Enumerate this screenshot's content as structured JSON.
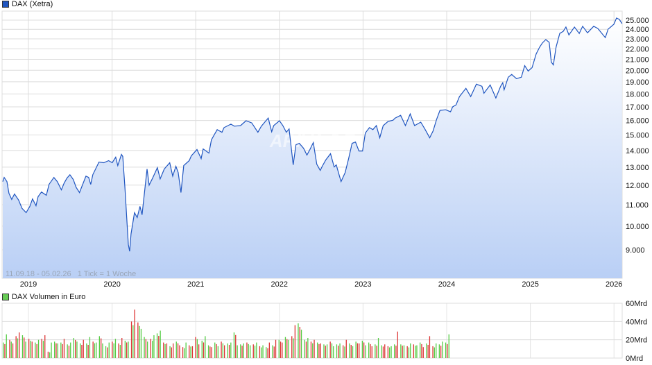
{
  "price_legend": "DAX (Xetra)",
  "volume_legend": "DAX Volumen in Euro",
  "range_note": "11.09.18 - 05.02.26   1 Tick = 1 Woche",
  "watermark": "ARIVA.DE",
  "colors": {
    "line": "#1f55c0",
    "fill_bottom": "#b9cff5",
    "price_legend": "#1f55c0",
    "volume_legend": "#66cc55",
    "vol_up": "#55cc44",
    "vol_down": "#dd3333"
  },
  "chart_data": [
    {
      "type": "area",
      "title": "DAX (Xetra)",
      "y_scale": "log",
      "ylim": [
        8500,
        26000
      ],
      "grid": true,
      "y_ticks": [
        "9.000",
        "10.000",
        "11.000",
        "12.000",
        "13.000",
        "14.000",
        "15.000",
        "16.000",
        "17.000",
        "18.000",
        "19.000",
        "20.000",
        "21.000",
        "22.000",
        "23.000",
        "24.000",
        "25.000"
      ],
      "y_tick_values": [
        9000,
        10000,
        11000,
        12000,
        13000,
        14000,
        15000,
        16000,
        17000,
        18000,
        19000,
        20000,
        21000,
        22000,
        23000,
        24000,
        25000
      ],
      "x_ticks": [
        "2019",
        "2020",
        "2021",
        "2022",
        "2023",
        "2024",
        "2025",
        "2026"
      ],
      "x_range": [
        "2018-09-11",
        "2026-02-05"
      ],
      "points": [
        [
          "2018-09-11",
          12190
        ],
        [
          "2018-09-17",
          12420
        ],
        [
          "2018-09-29",
          12190
        ],
        [
          "2018-10-08",
          11570
        ],
        [
          "2018-10-20",
          11260
        ],
        [
          "2018-11-01",
          11540
        ],
        [
          "2018-11-19",
          11230
        ],
        [
          "2018-12-04",
          10820
        ],
        [
          "2018-12-22",
          10620
        ],
        [
          "2019-01-07",
          10920
        ],
        [
          "2019-01-19",
          11290
        ],
        [
          "2019-02-03",
          10950
        ],
        [
          "2019-02-12",
          11400
        ],
        [
          "2019-02-27",
          11640
        ],
        [
          "2019-03-20",
          11470
        ],
        [
          "2019-04-01",
          12040
        ],
        [
          "2019-04-22",
          12420
        ],
        [
          "2019-05-07",
          12190
        ],
        [
          "2019-05-25",
          11750
        ],
        [
          "2019-06-06",
          12110
        ],
        [
          "2019-06-18",
          12380
        ],
        [
          "2019-07-01",
          12570
        ],
        [
          "2019-07-16",
          12300
        ],
        [
          "2019-07-28",
          11890
        ],
        [
          "2019-08-12",
          11610
        ],
        [
          "2019-09-09",
          12490
        ],
        [
          "2019-09-21",
          12420
        ],
        [
          "2019-09-30",
          12040
        ],
        [
          "2019-10-09",
          12570
        ],
        [
          "2019-11-05",
          13300
        ],
        [
          "2019-11-26",
          13260
        ],
        [
          "2019-12-17",
          13380
        ],
        [
          "2020-01-02",
          13260
        ],
        [
          "2020-01-17",
          13590
        ],
        [
          "2020-01-26",
          13090
        ],
        [
          "2020-02-11",
          13760
        ],
        [
          "2020-02-17",
          13630
        ],
        [
          "2020-02-26",
          11930
        ],
        [
          "2020-03-12",
          9220
        ],
        [
          "2020-03-18",
          8940
        ],
        [
          "2020-03-24",
          9660
        ],
        [
          "2020-04-08",
          10620
        ],
        [
          "2020-04-20",
          10390
        ],
        [
          "2020-05-02",
          10920
        ],
        [
          "2020-05-11",
          10520
        ],
        [
          "2020-06-02",
          12890
        ],
        [
          "2020-06-11",
          12000
        ],
        [
          "2020-06-26",
          12380
        ],
        [
          "2020-07-17",
          12970
        ],
        [
          "2020-07-29",
          12340
        ],
        [
          "2020-08-16",
          12890
        ],
        [
          "2020-09-09",
          13260
        ],
        [
          "2020-09-22",
          12490
        ],
        [
          "2020-10-06",
          13050
        ],
        [
          "2020-10-16",
          12690
        ],
        [
          "2020-10-28",
          11610
        ],
        [
          "2020-11-09",
          13090
        ],
        [
          "2020-12-03",
          13380
        ],
        [
          "2020-12-12",
          13670
        ],
        [
          "2021-01-06",
          14060
        ],
        [
          "2021-01-24",
          13500
        ],
        [
          "2021-02-02",
          14100
        ],
        [
          "2021-02-27",
          13840
        ],
        [
          "2021-03-10",
          14680
        ],
        [
          "2021-04-04",
          15360
        ],
        [
          "2021-04-25",
          15180
        ],
        [
          "2021-05-04",
          15500
        ],
        [
          "2021-06-03",
          15740
        ],
        [
          "2021-06-18",
          15600
        ],
        [
          "2021-07-15",
          15640
        ],
        [
          "2021-08-08",
          15980
        ],
        [
          "2021-09-02",
          15830
        ],
        [
          "2021-09-29",
          15180
        ],
        [
          "2021-10-14",
          15600
        ],
        [
          "2021-11-13",
          16170
        ],
        [
          "2021-11-28",
          15220
        ],
        [
          "2021-12-07",
          15640
        ],
        [
          "2022-01-01",
          15980
        ],
        [
          "2022-01-16",
          15640
        ],
        [
          "2022-01-31",
          15180
        ],
        [
          "2022-02-12",
          15410
        ],
        [
          "2022-03-02",
          13130
        ],
        [
          "2022-03-14",
          14360
        ],
        [
          "2022-03-29",
          14450
        ],
        [
          "2022-04-16",
          14140
        ],
        [
          "2022-05-01",
          13720
        ],
        [
          "2022-05-14",
          14060
        ],
        [
          "2022-05-29",
          14500
        ],
        [
          "2022-06-13",
          13170
        ],
        [
          "2022-06-28",
          12810
        ],
        [
          "2022-07-07",
          13050
        ],
        [
          "2022-07-22",
          13420
        ],
        [
          "2022-08-12",
          13800
        ],
        [
          "2022-08-28",
          13010
        ],
        [
          "2022-09-06",
          13130
        ],
        [
          "2022-09-27",
          12190
        ],
        [
          "2022-10-15",
          12690
        ],
        [
          "2022-10-30",
          13500
        ],
        [
          "2022-11-14",
          14450
        ],
        [
          "2022-11-29",
          14540
        ],
        [
          "2022-12-14",
          13970
        ],
        [
          "2022-12-30",
          13970
        ],
        [
          "2023-01-11",
          15130
        ],
        [
          "2023-01-29",
          15500
        ],
        [
          "2023-02-13",
          15360
        ],
        [
          "2023-02-28",
          15640
        ],
        [
          "2023-03-15",
          14810
        ],
        [
          "2023-03-30",
          15640
        ],
        [
          "2023-04-20",
          15930
        ],
        [
          "2023-05-12",
          16020
        ],
        [
          "2023-05-21",
          16170
        ],
        [
          "2023-06-14",
          16370
        ],
        [
          "2023-07-05",
          15640
        ],
        [
          "2023-07-26",
          16470
        ],
        [
          "2023-08-14",
          15640
        ],
        [
          "2023-09-10",
          15880
        ],
        [
          "2023-09-28",
          15410
        ],
        [
          "2023-10-19",
          14810
        ],
        [
          "2023-11-03",
          15270
        ],
        [
          "2023-11-18",
          16070
        ],
        [
          "2023-12-03",
          16730
        ],
        [
          "2023-12-28",
          16780
        ],
        [
          "2024-01-18",
          16630
        ],
        [
          "2024-01-27",
          16990
        ],
        [
          "2024-02-11",
          17150
        ],
        [
          "2024-02-26",
          17790
        ],
        [
          "2024-03-25",
          18460
        ],
        [
          "2024-04-15",
          17790
        ],
        [
          "2024-05-10",
          18800
        ],
        [
          "2024-06-03",
          18630
        ],
        [
          "2024-06-12",
          18060
        ],
        [
          "2024-07-09",
          18740
        ],
        [
          "2024-08-03",
          17680
        ],
        [
          "2024-08-24",
          18630
        ],
        [
          "2024-09-02",
          18920
        ],
        [
          "2024-09-08",
          18340
        ],
        [
          "2024-09-26",
          19390
        ],
        [
          "2024-10-11",
          19630
        ],
        [
          "2024-11-01",
          19270
        ],
        [
          "2024-11-22",
          19390
        ],
        [
          "2024-12-07",
          20420
        ],
        [
          "2024-12-22",
          19930
        ],
        [
          "2025-01-08",
          20240
        ],
        [
          "2025-01-26",
          21510
        ],
        [
          "2025-02-10",
          22170
        ],
        [
          "2025-02-22",
          22580
        ],
        [
          "2025-03-09",
          22930
        ],
        [
          "2025-03-24",
          22650
        ],
        [
          "2025-04-02",
          20740
        ],
        [
          "2025-04-11",
          20490
        ],
        [
          "2025-04-23",
          22170
        ],
        [
          "2025-05-09",
          23560
        ],
        [
          "2025-05-24",
          23780
        ],
        [
          "2025-06-05",
          24240
        ],
        [
          "2025-06-18",
          23410
        ],
        [
          "2025-07-12",
          24240
        ],
        [
          "2025-08-02",
          23560
        ],
        [
          "2025-08-17",
          24320
        ],
        [
          "2025-09-07",
          23630
        ],
        [
          "2025-10-04",
          24320
        ],
        [
          "2025-10-22",
          24090
        ],
        [
          "2025-11-09",
          23560
        ],
        [
          "2025-11-24",
          23130
        ],
        [
          "2025-12-06",
          24010
        ],
        [
          "2025-12-31",
          24540
        ],
        [
          "2026-01-12",
          25230
        ],
        [
          "2026-01-24",
          25080
        ],
        [
          "2026-02-05",
          24620
        ]
      ]
    },
    {
      "type": "bar",
      "title": "DAX Volumen in Euro",
      "ylim": [
        0,
        60
      ],
      "y_unit": "Mrd",
      "y_ticks": [
        "0Mrd",
        "20Mrd",
        "40Mrd",
        "60Mrd"
      ],
      "y_tick_values": [
        0,
        20,
        40,
        60
      ],
      "start": "2018-09-11",
      "bar_interval_weeks": 2,
      "bars": [
        [
          17,
          "u"
        ],
        [
          26,
          "u"
        ],
        [
          20,
          "d"
        ],
        [
          16,
          "d"
        ],
        [
          24,
          "d"
        ],
        [
          28,
          "d"
        ],
        [
          25,
          "u"
        ],
        [
          18,
          "u"
        ],
        [
          21,
          "d"
        ],
        [
          18,
          "d"
        ],
        [
          17,
          "u"
        ],
        [
          20,
          "u"
        ],
        [
          21,
          "d"
        ],
        [
          25,
          "d"
        ],
        [
          7,
          "d"
        ],
        [
          17,
          "u"
        ],
        [
          18,
          "u"
        ],
        [
          16,
          "u"
        ],
        [
          17,
          "u"
        ],
        [
          21,
          "d"
        ],
        [
          15,
          "u"
        ],
        [
          17,
          "u"
        ],
        [
          22,
          "u"
        ],
        [
          18,
          "u"
        ],
        [
          16,
          "u"
        ],
        [
          20,
          "d"
        ],
        [
          16,
          "u"
        ],
        [
          23,
          "u"
        ],
        [
          18,
          "d"
        ],
        [
          17,
          "u"
        ],
        [
          24,
          "u"
        ],
        [
          16,
          "u"
        ],
        [
          13,
          "u"
        ],
        [
          17,
          "u"
        ],
        [
          18,
          "d"
        ],
        [
          21,
          "u"
        ],
        [
          16,
          "d"
        ],
        [
          22,
          "d"
        ],
        [
          19,
          "u"
        ],
        [
          18,
          "u"
        ],
        [
          40,
          "d"
        ],
        [
          53,
          "d"
        ],
        [
          39,
          "d"
        ],
        [
          32,
          "u"
        ],
        [
          23,
          "u"
        ],
        [
          18,
          "u"
        ],
        [
          21,
          "d"
        ],
        [
          25,
          "u"
        ],
        [
          27,
          "u"
        ],
        [
          30,
          "u"
        ],
        [
          17,
          "d"
        ],
        [
          16,
          "d"
        ],
        [
          13,
          "u"
        ],
        [
          16,
          "d"
        ],
        [
          18,
          "u"
        ],
        [
          14,
          "d"
        ],
        [
          12,
          "d"
        ],
        [
          17,
          "u"
        ],
        [
          14,
          "d"
        ],
        [
          13,
          "d"
        ],
        [
          23,
          "d"
        ],
        [
          15,
          "d"
        ],
        [
          19,
          "u"
        ],
        [
          24,
          "u"
        ],
        [
          14,
          "u"
        ],
        [
          12,
          "d"
        ],
        [
          17,
          "u"
        ],
        [
          13,
          "u"
        ],
        [
          18,
          "d"
        ],
        [
          14,
          "d"
        ],
        [
          16,
          "u"
        ],
        [
          17,
          "u"
        ],
        [
          28,
          "u"
        ],
        [
          14,
          "u"
        ],
        [
          15,
          "u"
        ],
        [
          16,
          "u"
        ],
        [
          17,
          "d"
        ],
        [
          14,
          "u"
        ],
        [
          15,
          "d"
        ],
        [
          17,
          "u"
        ],
        [
          13,
          "d"
        ],
        [
          14,
          "u"
        ],
        [
          12,
          "u"
        ],
        [
          17,
          "d"
        ],
        [
          14,
          "u"
        ],
        [
          20,
          "d"
        ],
        [
          20,
          "u"
        ],
        [
          17,
          "d"
        ],
        [
          23,
          "u"
        ],
        [
          20,
          "u"
        ],
        [
          24,
          "d"
        ],
        [
          36,
          "d"
        ],
        [
          38,
          "u"
        ],
        [
          31,
          "u"
        ],
        [
          20,
          "u"
        ],
        [
          22,
          "u"
        ],
        [
          18,
          "d"
        ],
        [
          20,
          "d"
        ],
        [
          17,
          "u"
        ],
        [
          16,
          "d"
        ],
        [
          15,
          "u"
        ],
        [
          15,
          "u"
        ],
        [
          18,
          "d"
        ],
        [
          13,
          "u"
        ],
        [
          15,
          "u"
        ],
        [
          16,
          "u"
        ],
        [
          14,
          "d"
        ],
        [
          20,
          "d"
        ],
        [
          16,
          "u"
        ],
        [
          13,
          "u"
        ],
        [
          18,
          "u"
        ],
        [
          16,
          "d"
        ],
        [
          19,
          "u"
        ],
        [
          14,
          "u"
        ],
        [
          17,
          "u"
        ],
        [
          13,
          "d"
        ],
        [
          15,
          "u"
        ],
        [
          22,
          "u"
        ],
        [
          14,
          "u"
        ],
        [
          15,
          "d"
        ],
        [
          13,
          "d"
        ],
        [
          13,
          "u"
        ],
        [
          15,
          "u"
        ],
        [
          29,
          "d"
        ],
        [
          15,
          "u"
        ],
        [
          14,
          "u"
        ],
        [
          13,
          "d"
        ],
        [
          16,
          "u"
        ],
        [
          15,
          "d"
        ],
        [
          14,
          "u"
        ],
        [
          17,
          "u"
        ],
        [
          12,
          "d"
        ],
        [
          16,
          "u"
        ],
        [
          24,
          "d"
        ],
        [
          13,
          "d"
        ],
        [
          16,
          "u"
        ],
        [
          15,
          "u"
        ],
        [
          18,
          "u"
        ],
        [
          17,
          "u"
        ],
        [
          26,
          "u"
        ]
      ]
    }
  ]
}
